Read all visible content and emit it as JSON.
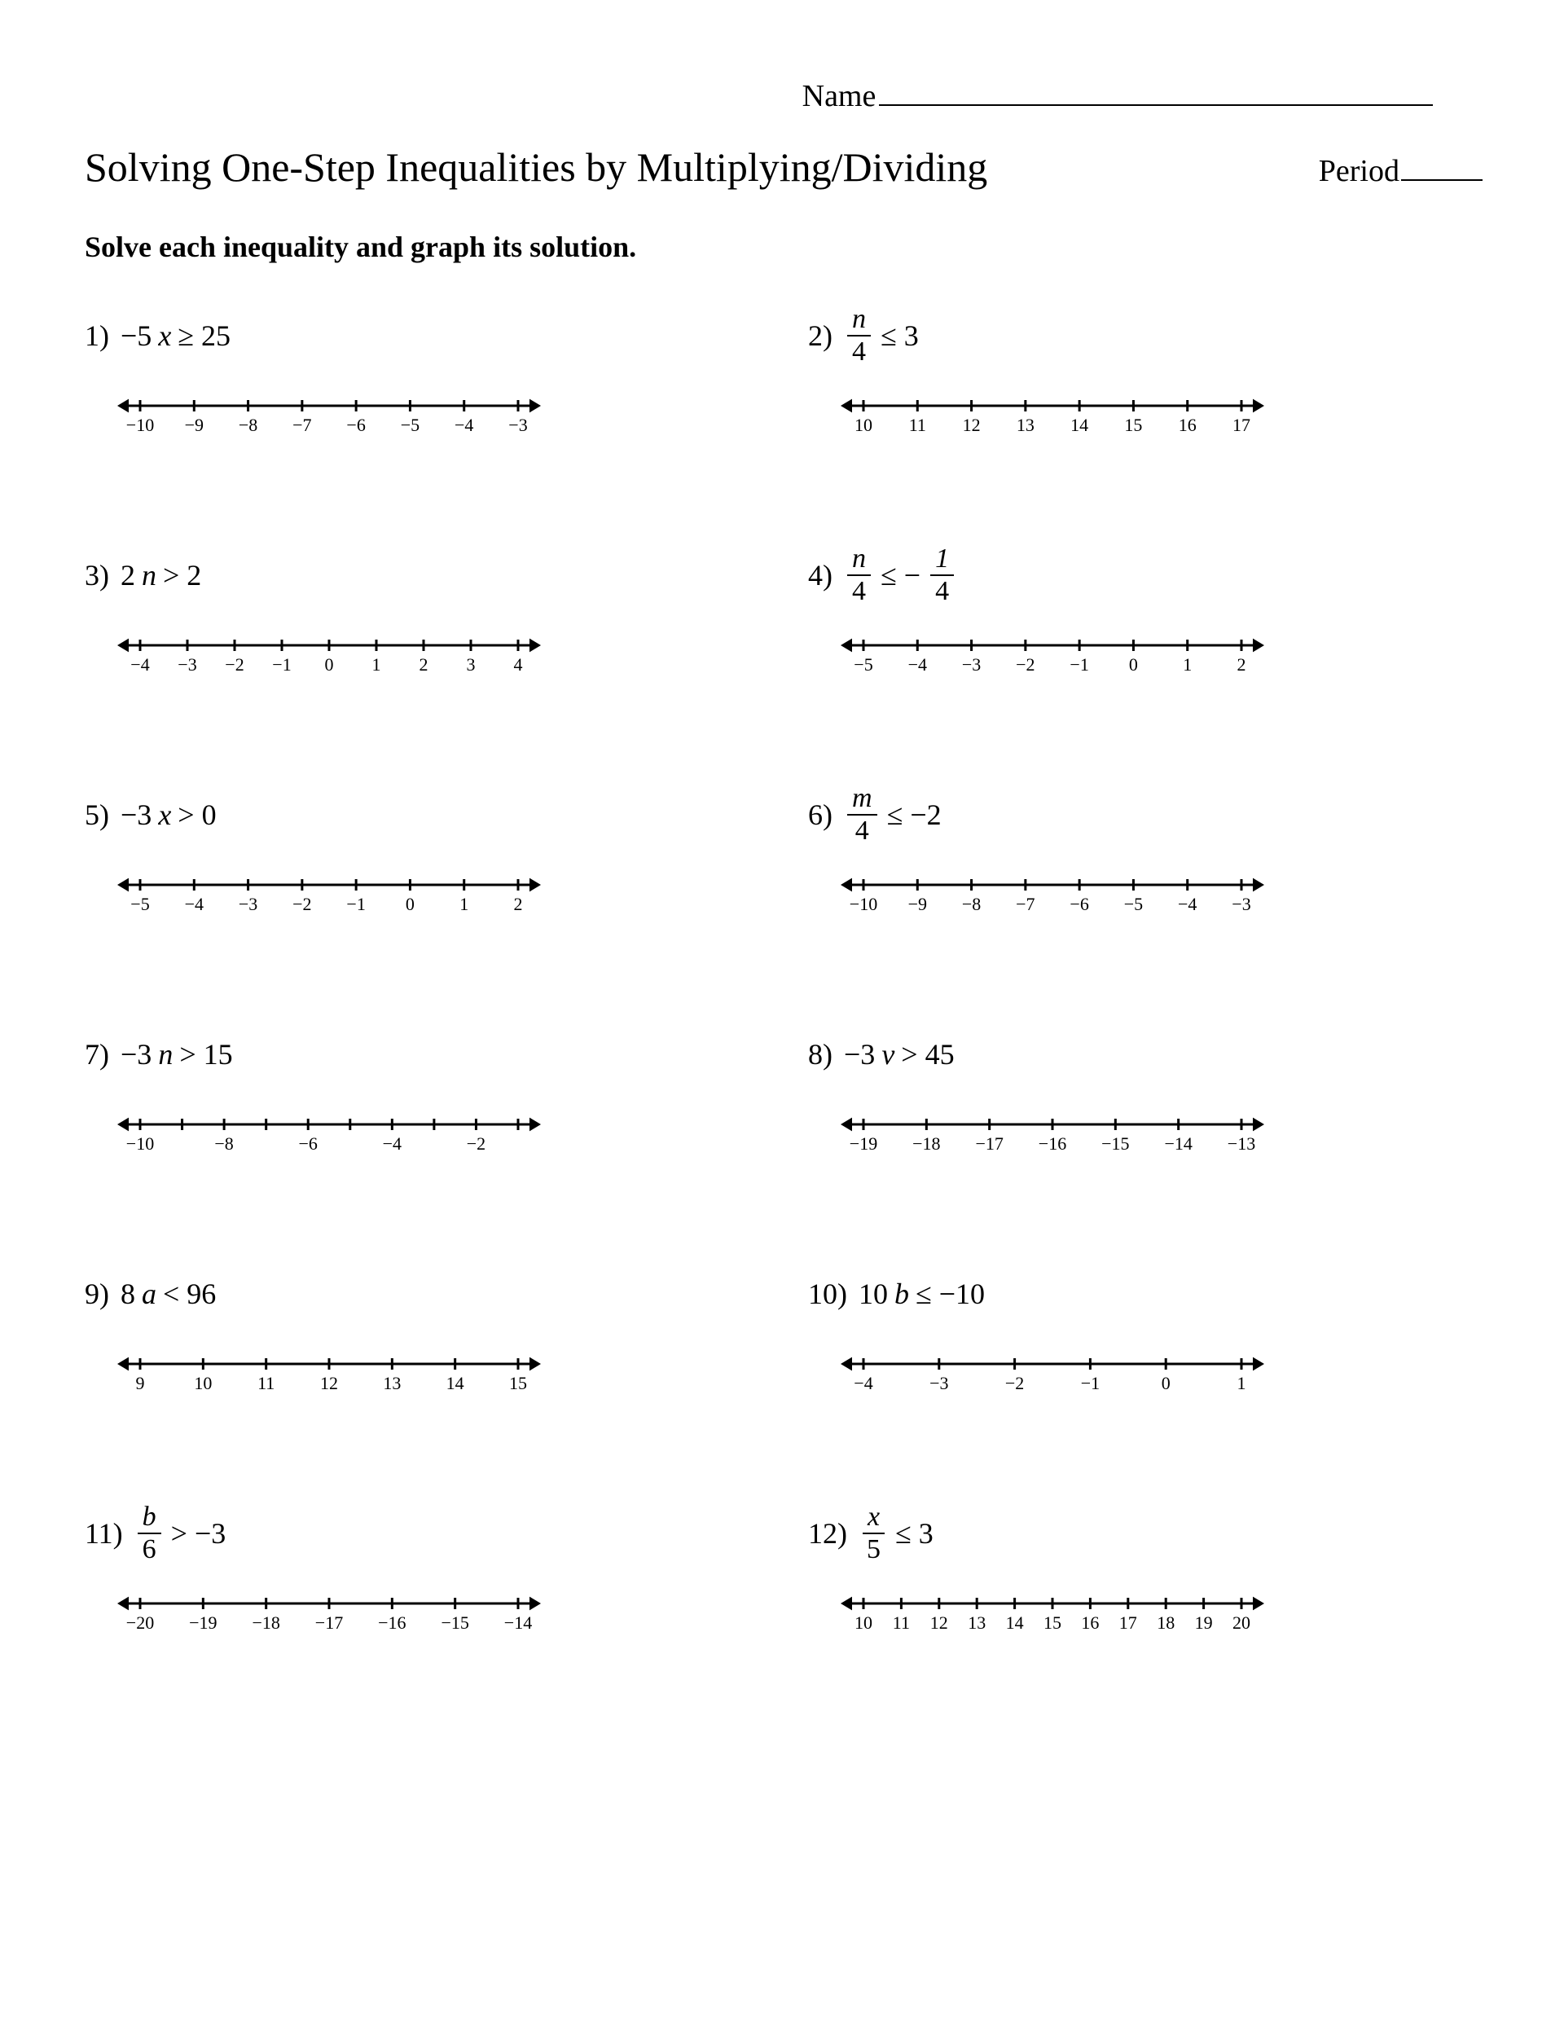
{
  "header": {
    "name_label": "Name",
    "title": "Solving One-Step Inequalities by Multiplying/Dividing",
    "period_label": "Period"
  },
  "instructions": "Solve each inequality and graph its solution.",
  "style": {
    "line_color": "#000000",
    "line_width": 3,
    "tick_height": 14,
    "arrow_size": 14,
    "font_size_ticks": 22,
    "nl_width": 520,
    "nl_height": 70,
    "margin_lr": 28
  },
  "problems": [
    {
      "n": "1)",
      "expr": [
        {
          "t": "txt",
          "v": "−5"
        },
        {
          "t": "it",
          "v": "x"
        },
        {
          "t": "txt",
          "v": " ≥ 25"
        }
      ],
      "ticks": [
        "−10",
        "−9",
        "−8",
        "−7",
        "−6",
        "−5",
        "−4",
        "−3"
      ]
    },
    {
      "n": "2)",
      "expr": [
        {
          "t": "frac",
          "num": "n",
          "den": "4",
          "numit": true
        },
        {
          "t": "txt",
          "v": " ≤ 3"
        }
      ],
      "ticks": [
        "10",
        "11",
        "12",
        "13",
        "14",
        "15",
        "16",
        "17"
      ]
    },
    {
      "n": "3)",
      "expr": [
        {
          "t": "txt",
          "v": "2"
        },
        {
          "t": "it",
          "v": "n"
        },
        {
          "t": "txt",
          "v": " > 2"
        }
      ],
      "ticks": [
        "−4",
        "−3",
        "−2",
        "−1",
        "0",
        "1",
        "2",
        "3",
        "4"
      ]
    },
    {
      "n": "4)",
      "expr": [
        {
          "t": "frac",
          "num": "n",
          "den": "4",
          "numit": true
        },
        {
          "t": "txt",
          "v": " ≤ −"
        },
        {
          "t": "frac",
          "num": "1",
          "den": "4",
          "numit": false
        }
      ],
      "ticks": [
        "−5",
        "−4",
        "−3",
        "−2",
        "−1",
        "0",
        "1",
        "2"
      ]
    },
    {
      "n": "5)",
      "expr": [
        {
          "t": "txt",
          "v": "−3"
        },
        {
          "t": "it",
          "v": "x"
        },
        {
          "t": "txt",
          "v": " > 0"
        }
      ],
      "ticks": [
        "−5",
        "−4",
        "−3",
        "−2",
        "−1",
        "0",
        "1",
        "2"
      ]
    },
    {
      "n": "6)",
      "expr": [
        {
          "t": "frac",
          "num": "m",
          "den": "4",
          "numit": true
        },
        {
          "t": "txt",
          "v": " ≤ −2"
        }
      ],
      "ticks": [
        "−10",
        "−9",
        "−8",
        "−7",
        "−6",
        "−5",
        "−4",
        "−3"
      ]
    },
    {
      "n": "7)",
      "expr": [
        {
          "t": "txt",
          "v": "−3"
        },
        {
          "t": "it",
          "v": "n"
        },
        {
          "t": "txt",
          "v": " > 15"
        }
      ],
      "ticks": [
        "−10",
        "",
        "−8",
        "",
        "−6",
        "",
        "−4",
        "",
        "−2",
        ""
      ],
      "label_every": 1
    },
    {
      "n": "8)",
      "expr": [
        {
          "t": "txt",
          "v": "−3"
        },
        {
          "t": "it",
          "v": "v"
        },
        {
          "t": "txt",
          "v": " > 45"
        }
      ],
      "ticks": [
        "−19",
        "−18",
        "−17",
        "−16",
        "−15",
        "−14",
        "−13"
      ]
    },
    {
      "n": "9)",
      "expr": [
        {
          "t": "txt",
          "v": "8"
        },
        {
          "t": "it",
          "v": "a"
        },
        {
          "t": "txt",
          "v": " < 96"
        }
      ],
      "ticks": [
        "9",
        "10",
        "11",
        "12",
        "13",
        "14",
        "15"
      ]
    },
    {
      "n": "10)",
      "expr": [
        {
          "t": "txt",
          "v": "10"
        },
        {
          "t": "it",
          "v": "b"
        },
        {
          "t": "txt",
          "v": " ≤ −10"
        }
      ],
      "ticks": [
        "−4",
        "−3",
        "−2",
        "−1",
        "0",
        "1"
      ]
    },
    {
      "n": "11)",
      "expr": [
        {
          "t": "frac",
          "num": "b",
          "den": "6",
          "numit": true
        },
        {
          "t": "txt",
          "v": " > −3"
        }
      ],
      "ticks": [
        "−20",
        "−19",
        "−18",
        "−17",
        "−16",
        "−15",
        "−14"
      ]
    },
    {
      "n": "12)",
      "expr": [
        {
          "t": "frac",
          "num": "x",
          "den": "5",
          "numit": true
        },
        {
          "t": "txt",
          "v": " ≤ 3"
        }
      ],
      "ticks": [
        "10",
        "11",
        "12",
        "13",
        "14",
        "15",
        "16",
        "17",
        "18",
        "19",
        "20"
      ]
    }
  ]
}
